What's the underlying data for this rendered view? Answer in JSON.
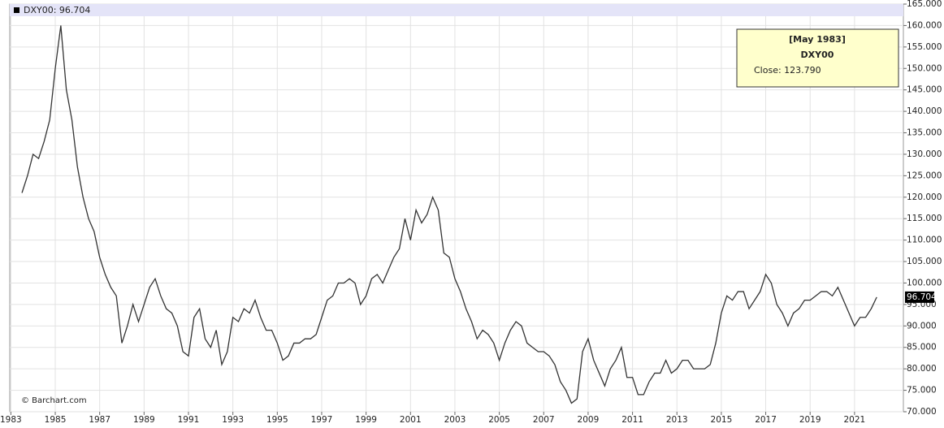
{
  "chart_data": {
    "type": "line",
    "legend_label": "DXY00: 96.704",
    "tooltip": {
      "date": "[May 1983]",
      "symbol": "DXY00",
      "close": "Close: 123.790"
    },
    "credit": "© Barchart.com",
    "xlim": [
      1982.95,
      2023.2
    ],
    "xticks": [
      1983,
      1985,
      1987,
      1989,
      1991,
      1993,
      1995,
      1997,
      1999,
      2001,
      2003,
      2005,
      2007,
      2009,
      2011,
      2013,
      2015,
      2017,
      2019,
      2021
    ],
    "ylim": [
      70,
      165
    ],
    "yticks": [
      {
        "value": 70,
        "label": "70.000"
      },
      {
        "value": 75,
        "label": "75.000"
      },
      {
        "value": 80,
        "label": "80.000"
      },
      {
        "value": 85,
        "label": "85.000"
      },
      {
        "value": 90,
        "label": "90.000"
      },
      {
        "value": 95,
        "label": "95.000"
      },
      {
        "value": 100,
        "label": "100.000"
      },
      {
        "value": 105,
        "label": "105.000"
      },
      {
        "value": 110,
        "label": "110.000"
      },
      {
        "value": 115,
        "label": "115.000"
      },
      {
        "value": 120,
        "label": "120.000"
      },
      {
        "value": 125,
        "label": "125.000"
      },
      {
        "value": 130,
        "label": "130.000"
      },
      {
        "value": 135,
        "label": "135.000"
      },
      {
        "value": 140,
        "label": "140.000"
      },
      {
        "value": 145,
        "label": "145.000"
      },
      {
        "value": 150,
        "label": "150.000"
      },
      {
        "value": 155,
        "label": "155.000"
      },
      {
        "value": 160,
        "label": "160.000"
      },
      {
        "value": 165,
        "label": "165.000"
      }
    ],
    "grid": true,
    "x": [
      1983.5,
      1983.75,
      1984,
      1984.25,
      1984.5,
      1984.75,
      1985,
      1985.25,
      1985.5,
      1985.75,
      1986,
      1986.25,
      1986.5,
      1986.75,
      1987,
      1987.25,
      1987.5,
      1987.75,
      1988,
      1988.25,
      1988.5,
      1988.75,
      1989,
      1989.25,
      1989.5,
      1989.75,
      1990,
      1990.25,
      1990.5,
      1990.75,
      1991,
      1991.25,
      1991.5,
      1991.75,
      1992,
      1992.25,
      1992.5,
      1992.75,
      1993,
      1993.25,
      1993.5,
      1993.75,
      1994,
      1994.25,
      1994.5,
      1994.75,
      1995,
      1995.25,
      1995.5,
      1995.75,
      1996,
      1996.25,
      1996.5,
      1996.75,
      1997,
      1997.25,
      1997.5,
      1997.75,
      1998,
      1998.25,
      1998.5,
      1998.75,
      1999,
      1999.25,
      1999.5,
      1999.75,
      2000,
      2000.25,
      2000.5,
      2000.75,
      2001,
      2001.25,
      2001.5,
      2001.75,
      2002,
      2002.25,
      2002.5,
      2002.75,
      2003,
      2003.25,
      2003.5,
      2003.75,
      2004,
      2004.25,
      2004.5,
      2004.75,
      2005,
      2005.25,
      2005.5,
      2005.75,
      2006,
      2006.25,
      2006.5,
      2006.75,
      2007,
      2007.25,
      2007.5,
      2007.75,
      2008,
      2008.25,
      2008.5,
      2008.75,
      2009,
      2009.25,
      2009.5,
      2009.75,
      2010,
      2010.25,
      2010.5,
      2010.75,
      2011,
      2011.25,
      2011.5,
      2011.75,
      2012,
      2012.25,
      2012.5,
      2012.75,
      2013,
      2013.25,
      2013.5,
      2013.75,
      2014,
      2014.25,
      2014.5,
      2014.75,
      2015,
      2015.25,
      2015.5,
      2015.75,
      2016,
      2016.25,
      2016.5,
      2016.75,
      2017,
      2017.25,
      2017.5,
      2017.75,
      2018,
      2018.25,
      2018.5,
      2018.75,
      2019,
      2019.25,
      2019.5,
      2019.75,
      2020,
      2020.25,
      2020.5,
      2020.75,
      2021,
      2021.25,
      2021.5,
      2021.75,
      2022
    ],
    "series": [
      {
        "name": "DXY00",
        "color": "#333333",
        "values": [
          121,
          125,
          130,
          129,
          133,
          138,
          150,
          160,
          145,
          138,
          127,
          120,
          115,
          112,
          106,
          102,
          99,
          97,
          86,
          90,
          95,
          91,
          95,
          99,
          101,
          97,
          94,
          93,
          90,
          84,
          83,
          92,
          94,
          87,
          85,
          89,
          81,
          84,
          92,
          91,
          94,
          93,
          96,
          92,
          89,
          89,
          86,
          82,
          83,
          86,
          86,
          87,
          87,
          88,
          92,
          96,
          97,
          100,
          100,
          101,
          100,
          95,
          97,
          101,
          102,
          100,
          103,
          106,
          108,
          115,
          110,
          117,
          114,
          116,
          120,
          117,
          107,
          106,
          101,
          98,
          94,
          91,
          87,
          89,
          88,
          86,
          82,
          86,
          89,
          91,
          90,
          86,
          85,
          84,
          84,
          83,
          81,
          77,
          75,
          72,
          73,
          84,
          87,
          82,
          79,
          76,
          80,
          82,
          85,
          78,
          78,
          74,
          74,
          77,
          79,
          79,
          82,
          79,
          80,
          82,
          82,
          80,
          80,
          80,
          81,
          86,
          93,
          97,
          96,
          98,
          98,
          94,
          96,
          98,
          102,
          100,
          95,
          93,
          90,
          93,
          94,
          96,
          96,
          97,
          98,
          98,
          97,
          99,
          96,
          93,
          90,
          92,
          92,
          94,
          96.704
        ]
      }
    ]
  }
}
